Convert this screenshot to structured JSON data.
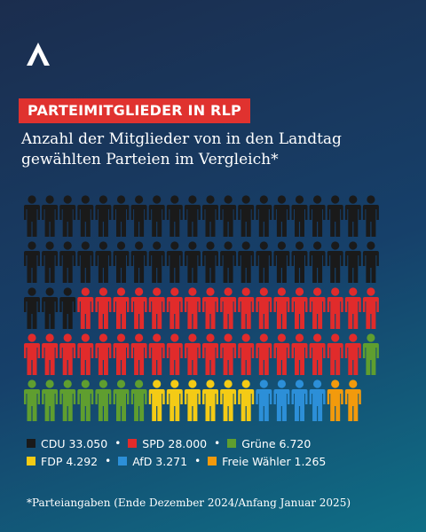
{
  "badge": "PARTEIMITGLIEDER IN RLP",
  "subtitle_lines": [
    "Anzahl der Mitglieder von in den Landtag",
    "gewählten Parteien im Vergleich*"
  ],
  "footnote": "*Parteiangaben (Ende Dezember 2024/Anfang Januar 2025)",
  "logo_icon": "caret-logo-icon",
  "chart_data": {
    "type": "pictogram",
    "title": "PARTEIMITGLIEDER IN RLP",
    "subtitle": "Anzahl der Mitglieder von in den Landtag gewählten Parteien im Vergleich*",
    "grid": {
      "rows": 5,
      "columns": 20
    },
    "series": [
      {
        "name": "CDU",
        "value": 33050,
        "label": "CDU 33.050",
        "figures": 43,
        "color": "#1a1a1a"
      },
      {
        "name": "SPD",
        "value": 28000,
        "label": "SPD 28.000",
        "figures": 36,
        "color": "#e12b2b"
      },
      {
        "name": "Grüne",
        "value": 6720,
        "label": "Grüne 6.720",
        "figures": 8,
        "color": "#5f9e2f"
      },
      {
        "name": "FDP",
        "value": 4292,
        "label": "FDP 4.292",
        "figures": 6,
        "color": "#f4cb15"
      },
      {
        "name": "AfD",
        "value": 3271,
        "label": "AfD 3.271",
        "figures": 4,
        "color": "#2c8fd8"
      },
      {
        "name": "Freie Wähler",
        "value": 1265,
        "label": "Freie Wähler 1.265",
        "figures": 2,
        "color": "#f29a0c"
      }
    ],
    "legend_rows": [
      [
        0,
        1,
        2
      ],
      [
        3,
        4,
        5
      ]
    ]
  }
}
